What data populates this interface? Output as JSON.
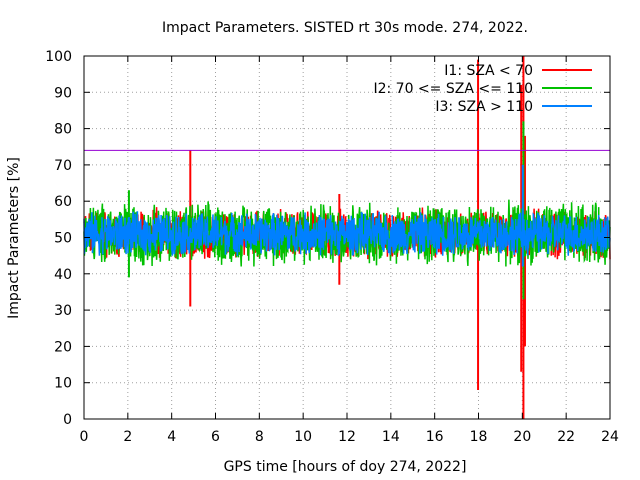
{
  "chart_data": {
    "type": "line",
    "title": "Impact Parameters. SISTED rt 30s mode. 274, 2022.",
    "xlabel": "GPS time [hours of doy 274, 2022]",
    "ylabel": "Impact Parameters [%]",
    "xlim": [
      0,
      24
    ],
    "ylim": [
      0,
      100
    ],
    "xticks": [
      0,
      2,
      4,
      6,
      8,
      10,
      12,
      14,
      16,
      18,
      20,
      22,
      24
    ],
    "yticks": [
      0,
      10,
      20,
      30,
      40,
      50,
      60,
      70,
      80,
      90,
      100
    ],
    "grid": true,
    "legend_position": "top-right",
    "reference_line": {
      "y": 74,
      "color": "#9400d3"
    },
    "series": [
      {
        "name": "I1: SZA < 70",
        "color": "#ff0000",
        "mean": 51,
        "noise_range": [
          44,
          59
        ],
        "spikes": [
          {
            "x": 4.85,
            "min": 31,
            "max": 74
          },
          {
            "x": 17.98,
            "min": 8,
            "max": 99
          },
          {
            "x": 19.95,
            "min": 13,
            "max": 92
          },
          {
            "x": 20.05,
            "min": 0,
            "max": 100
          },
          {
            "x": 20.12,
            "min": 20,
            "max": 78
          },
          {
            "x": 11.65,
            "min": 37,
            "max": 62
          }
        ]
      },
      {
        "name": "I2: 70 <= SZA <= 110",
        "color": "#00c000",
        "mean": 51,
        "noise_range": [
          42,
          61
        ],
        "spikes": [
          {
            "x": 20.05,
            "min": 33,
            "max": 82
          },
          {
            "x": 2.05,
            "min": 39,
            "max": 63
          }
        ]
      },
      {
        "name": "I3: SZA > 110",
        "color": "#0080ff",
        "mean": 51,
        "noise_range": [
          45,
          58
        ],
        "spikes": [
          {
            "x": 20.02,
            "min": 42,
            "max": 70
          }
        ]
      }
    ]
  }
}
